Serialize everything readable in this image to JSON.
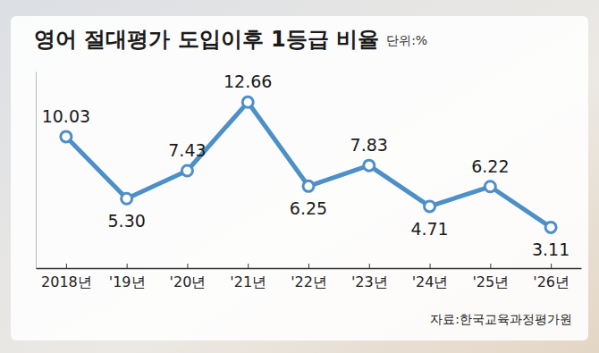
{
  "chart_data": {
    "type": "line",
    "title": "영어 절대평가 도입이후 1등급 비율",
    "subtitle": "단위:%",
    "source": "자료:한국교육과정평가원",
    "categories": [
      "2018년",
      "'19년",
      "'20년",
      "'21년",
      "'22년",
      "'23년",
      "'24년",
      "'25년",
      "'26년"
    ],
    "values": [
      10.03,
      5.3,
      7.43,
      12.66,
      6.25,
      7.83,
      4.71,
      6.22,
      3.11
    ],
    "value_labels": [
      "10.03",
      "5.30",
      "7.43",
      "12.66",
      "6.25",
      "7.83",
      "4.71",
      "6.22",
      "3.11"
    ],
    "color": "#4d8fc7",
    "marker": "circle",
    "ylim": [
      0,
      15
    ],
    "data_labels": true,
    "tick_labels": "x",
    "grid": false
  }
}
